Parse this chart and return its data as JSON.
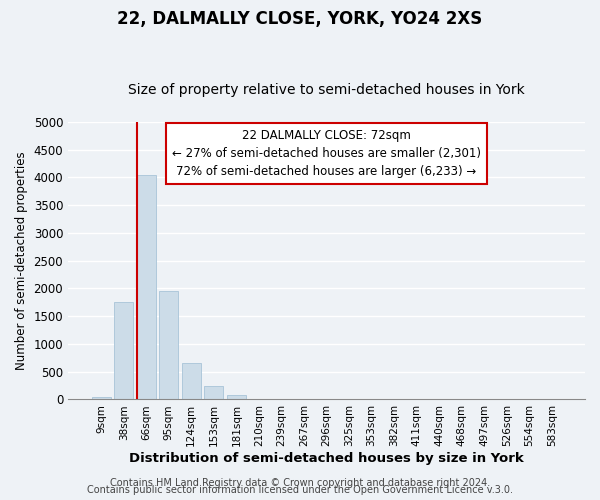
{
  "title": "22, DALMALLY CLOSE, YORK, YO24 2XS",
  "subtitle": "Size of property relative to semi-detached houses in York",
  "bar_labels": [
    "9sqm",
    "38sqm",
    "66sqm",
    "95sqm",
    "124sqm",
    "153sqm",
    "181sqm",
    "210sqm",
    "239sqm",
    "267sqm",
    "296sqm",
    "325sqm",
    "353sqm",
    "382sqm",
    "411sqm",
    "440sqm",
    "468sqm",
    "497sqm",
    "526sqm",
    "554sqm",
    "583sqm"
  ],
  "bar_values": [
    50,
    1750,
    4050,
    1950,
    650,
    250,
    80,
    0,
    0,
    0,
    0,
    0,
    0,
    0,
    0,
    0,
    0,
    0,
    0,
    0,
    0
  ],
  "bar_color": "#ccdce8",
  "bar_edge_color": "#a8c4d8",
  "vline_color": "#cc0000",
  "ylim": [
    0,
    5000
  ],
  "yticks": [
    0,
    500,
    1000,
    1500,
    2000,
    2500,
    3000,
    3500,
    4000,
    4500,
    5000
  ],
  "xlabel": "Distribution of semi-detached houses by size in York",
  "ylabel": "Number of semi-detached properties",
  "annotation_title": "22 DALMALLY CLOSE: 72sqm",
  "annotation_line1": "← 27% of semi-detached houses are smaller (2,301)",
  "annotation_line2": "72% of semi-detached houses are larger (6,233) →",
  "annotation_box_color": "#ffffff",
  "annotation_box_edge": "#cc0000",
  "footer_line1": "Contains HM Land Registry data © Crown copyright and database right 2024.",
  "footer_line2": "Contains public sector information licensed under the Open Government Licence v.3.0.",
  "background_color": "#eef2f6",
  "plot_background": "#eef2f6",
  "grid_color": "#ffffff",
  "title_fontsize": 12,
  "subtitle_fontsize": 10,
  "footer_fontsize": 7
}
